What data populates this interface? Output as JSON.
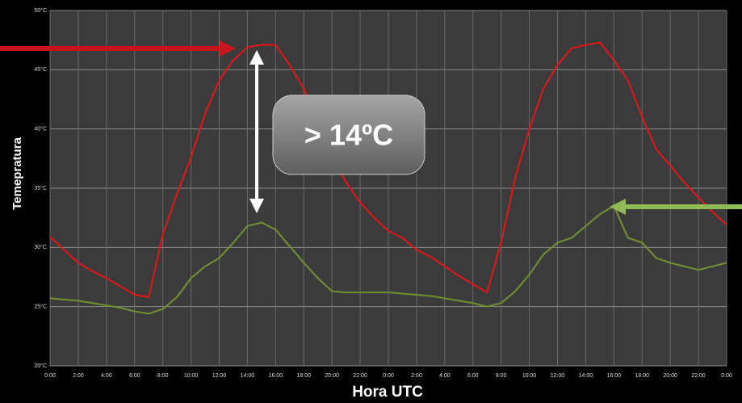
{
  "chart_data": {
    "type": "line",
    "x_label": "Hora UTC",
    "y_label": "Temepratura",
    "annotation": "> 14ºC",
    "x": [
      0,
      1,
      2,
      3,
      4,
      5,
      6,
      7,
      8,
      9,
      10,
      11,
      12,
      13,
      14,
      15,
      16,
      17,
      18,
      19,
      20,
      21,
      22,
      23,
      24,
      25,
      26,
      27,
      28,
      29,
      30,
      31,
      32,
      33,
      34,
      35,
      36,
      37,
      38,
      39,
      40,
      41,
      42,
      43,
      44,
      45,
      46,
      47,
      48
    ],
    "series": [
      {
        "color": "#d8181c",
        "values": [
          30.9,
          29.8,
          28.7,
          28.0,
          27.4,
          26.7,
          26.0,
          25.8,
          31.1,
          34.5,
          37.6,
          41.3,
          44.1,
          45.8,
          46.9,
          47.1,
          47.1,
          45.4,
          43.4,
          40.7,
          37.6,
          35.5,
          33.8,
          32.5,
          31.4,
          30.8,
          29.8,
          29.2,
          28.4,
          27.6,
          26.9,
          26.2,
          30.4,
          35.9,
          40.0,
          43.4,
          45.4,
          46.8,
          47.1,
          47.3,
          45.8,
          44.1,
          41.0,
          38.3,
          36.9,
          35.5,
          34.2,
          33.0,
          31.9
        ]
      },
      {
        "color": "#6f8a35",
        "values": [
          25.7,
          25.6,
          25.5,
          25.3,
          25.1,
          24.9,
          24.6,
          24.4,
          24.8,
          25.8,
          27.4,
          28.4,
          29.1,
          30.4,
          31.8,
          32.1,
          31.5,
          30.1,
          28.7,
          27.4,
          26.3,
          26.2,
          26.2,
          26.2,
          26.2,
          26.1,
          26.0,
          25.9,
          25.7,
          25.5,
          25.3,
          25.0,
          25.3,
          26.3,
          27.7,
          29.4,
          30.4,
          30.8,
          31.8,
          32.8,
          33.5,
          30.8,
          30.4,
          29.1,
          28.7,
          28.4,
          28.1,
          28.4,
          28.7
        ]
      }
    ],
    "xlim": [
      0,
      48
    ],
    "xticks": [
      {
        "value": 0,
        "label": "0:00"
      },
      {
        "value": 2,
        "label": "2:00"
      },
      {
        "value": 4,
        "label": "4:00"
      },
      {
        "value": 6,
        "label": "6:00"
      },
      {
        "value": 8,
        "label": "8:00"
      },
      {
        "value": 10,
        "label": "10:00"
      },
      {
        "value": 12,
        "label": "12:00"
      },
      {
        "value": 14,
        "label": "14:00"
      },
      {
        "value": 16,
        "label": "16:00"
      },
      {
        "value": 18,
        "label": "18:00"
      },
      {
        "value": 20,
        "label": "20:00"
      },
      {
        "value": 22,
        "label": "22:00"
      },
      {
        "value": 24,
        "label": "0:00"
      },
      {
        "value": 26,
        "label": "2:00"
      },
      {
        "value": 28,
        "label": "4:00"
      },
      {
        "value": 30,
        "label": "6:00"
      },
      {
        "value": 32,
        "label": "8:00"
      },
      {
        "value": 34,
        "label": "10:00"
      },
      {
        "value": 36,
        "label": "12:00"
      },
      {
        "value": 38,
        "label": "14:00"
      },
      {
        "value": 40,
        "label": "16:00"
      },
      {
        "value": 42,
        "label": "18:00"
      },
      {
        "value": 44,
        "label": "20:00"
      },
      {
        "value": 46,
        "label": "22:00"
      },
      {
        "value": 48,
        "label": "0:00"
      }
    ],
    "ylim": [
      20,
      50
    ],
    "yticks": [
      {
        "value": 20,
        "label": "20°C"
      },
      {
        "value": 25,
        "label": "25°C"
      },
      {
        "value": 30,
        "label": "30°C"
      },
      {
        "value": 35,
        "label": "35°C"
      },
      {
        "value": 40,
        "label": "40°C"
      },
      {
        "value": 45,
        "label": "45°C"
      },
      {
        "value": 50,
        "label": "50°C"
      }
    ],
    "grid": true
  }
}
